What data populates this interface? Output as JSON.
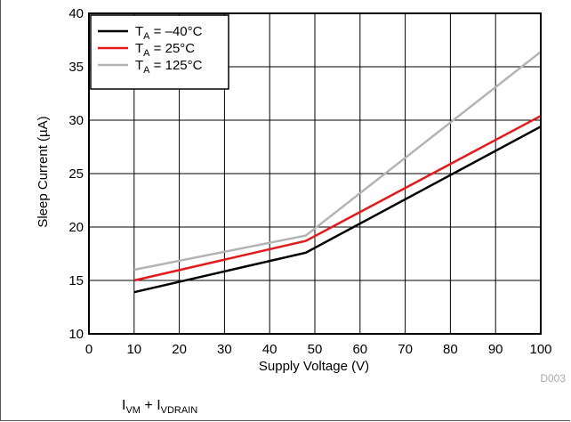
{
  "chart_data": {
    "type": "line",
    "xlabel": "Supply Voltage (V)",
    "ylabel": "Sleep Current (µA)",
    "xlim": [
      0,
      100
    ],
    "ylim": [
      10,
      40
    ],
    "x_ticks": [
      0,
      10,
      20,
      30,
      40,
      50,
      60,
      70,
      80,
      90,
      100
    ],
    "y_ticks": [
      10,
      15,
      20,
      25,
      30,
      35,
      40
    ],
    "grid": true,
    "legend_position": "top-left",
    "series": [
      {
        "name_main": "T",
        "name_sub": "A",
        "name_rest": " = –40°C",
        "color": "#000000",
        "x": [
          10,
          48,
          100
        ],
        "y": [
          13.9,
          17.6,
          29.4
        ]
      },
      {
        "name_main": "T",
        "name_sub": "A",
        "name_rest": " = 25°C",
        "color": "#e31a1c",
        "x": [
          10,
          48,
          100
        ],
        "y": [
          15.0,
          18.7,
          30.4
        ]
      },
      {
        "name_main": "T",
        "name_sub": "A",
        "name_rest": " = 125°C",
        "color": "#b3b3b3",
        "x": [
          10,
          48,
          100
        ],
        "y": [
          16.0,
          19.2,
          36.4
        ]
      }
    ]
  },
  "figure_id": "D003",
  "caption": {
    "p1": "I",
    "s1": "VM",
    "p2": " + I",
    "s2": "VDRAIN"
  }
}
